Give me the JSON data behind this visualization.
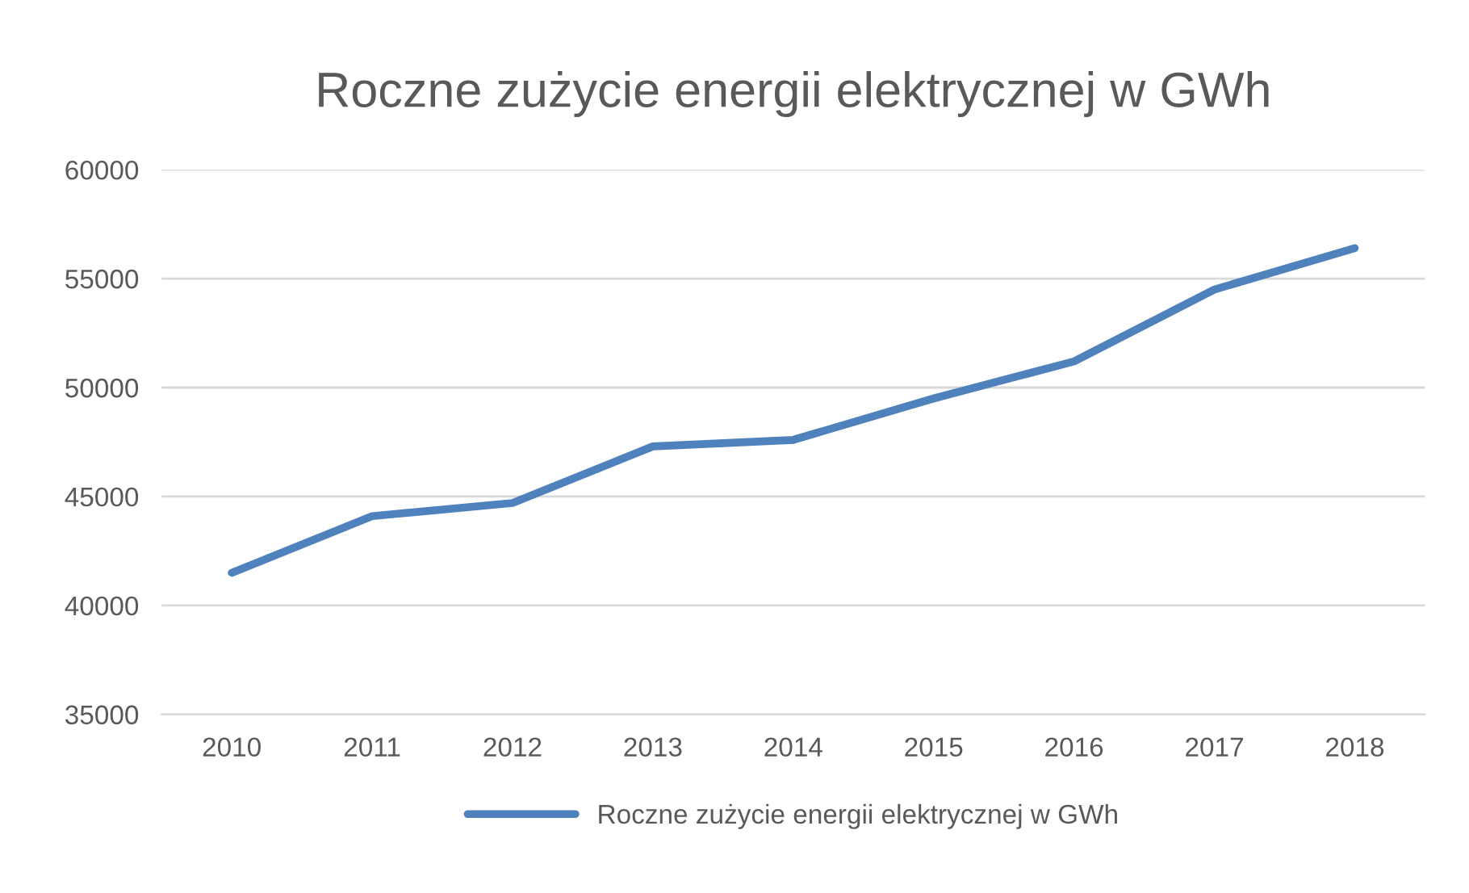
{
  "chart_data": {
    "type": "line",
    "title": "Roczne zużycie energii elektrycznej w GWh",
    "categories": [
      "2010",
      "2011",
      "2012",
      "2013",
      "2014",
      "2015",
      "2016",
      "2017",
      "2018"
    ],
    "series": [
      {
        "name": "Roczne zużycie energii elektrycznej w GWh",
        "color": "#4f81bd",
        "values": [
          41500,
          44100,
          44700,
          47300,
          47600,
          49500,
          51200,
          54500,
          56400
        ]
      }
    ],
    "ylim": [
      35000,
      60000
    ],
    "yticks": [
      35000,
      40000,
      45000,
      50000,
      55000,
      60000
    ],
    "grid": "y",
    "legend": "bottom",
    "marker": "none",
    "line_style": "solid"
  }
}
